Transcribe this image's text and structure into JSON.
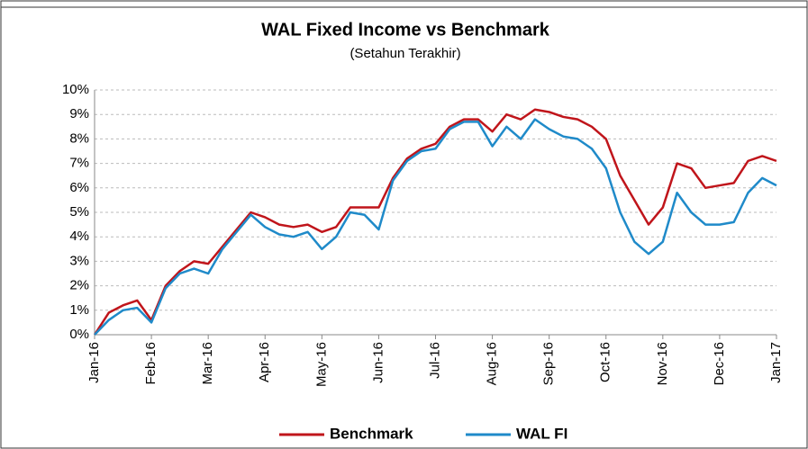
{
  "chart_data": {
    "type": "line",
    "title": "WAL Fixed Income vs Benchmark",
    "subtitle": "(Setahun Terakhir)",
    "categories": [
      "Jan-16",
      null,
      null,
      null,
      "Feb-16",
      null,
      null,
      null,
      "Mar-16",
      null,
      null,
      null,
      "Apr-16",
      null,
      null,
      null,
      "May-16",
      null,
      null,
      null,
      "Jun-16",
      null,
      null,
      null,
      "Jul-16",
      null,
      null,
      null,
      "Aug-16",
      null,
      null,
      null,
      "Sep-16",
      null,
      null,
      null,
      "Oct-16",
      null,
      null,
      null,
      "Nov-16",
      null,
      null,
      null,
      "Dec-16",
      null,
      null,
      null,
      "Jan-17"
    ],
    "series": [
      {
        "name": "Benchmark",
        "color": "#c0151b",
        "values": [
          0,
          0.9,
          1.2,
          1.4,
          0.6,
          2.0,
          2.6,
          3.0,
          2.9,
          3.6,
          4.3,
          5.0,
          4.8,
          4.5,
          4.4,
          4.5,
          4.2,
          4.4,
          5.2,
          5.2,
          5.2,
          6.4,
          7.2,
          7.6,
          7.8,
          8.5,
          8.8,
          8.8,
          8.3,
          9.0,
          8.8,
          9.2,
          9.1,
          8.9,
          8.8,
          8.5,
          8.0,
          6.5,
          5.5,
          4.5,
          5.2,
          7.0,
          6.8,
          6.0,
          6.1,
          6.2,
          7.1,
          7.3,
          7.1
        ]
      },
      {
        "name": "WAL FI",
        "color": "#1f8ac9",
        "values": [
          0,
          0.6,
          1.0,
          1.1,
          0.5,
          1.9,
          2.5,
          2.7,
          2.5,
          3.5,
          4.2,
          4.9,
          4.4,
          4.1,
          4.0,
          4.2,
          3.5,
          4.0,
          5.0,
          4.9,
          4.3,
          6.3,
          7.1,
          7.5,
          7.6,
          8.4,
          8.7,
          8.7,
          7.7,
          8.5,
          8.0,
          8.8,
          8.4,
          8.1,
          8.0,
          7.6,
          6.8,
          5.0,
          3.8,
          3.3,
          3.8,
          5.8,
          5.0,
          4.5,
          4.5,
          4.6,
          5.8,
          6.4,
          6.1
        ]
      }
    ],
    "ylim": [
      0,
      10
    ],
    "yticks": [
      {
        "value": 0,
        "label": "0%"
      },
      {
        "value": 1,
        "label": "1%"
      },
      {
        "value": 2,
        "label": "2%"
      },
      {
        "value": 3,
        "label": "3%"
      },
      {
        "value": 4,
        "label": "4%"
      },
      {
        "value": 5,
        "label": "5%"
      },
      {
        "value": 6,
        "label": "6%"
      },
      {
        "value": 7,
        "label": "7%"
      },
      {
        "value": 8,
        "label": "8%"
      },
      {
        "value": 9,
        "label": "9%"
      },
      {
        "value": 10,
        "label": "10%"
      }
    ],
    "grid": true,
    "legend": "bottom"
  }
}
